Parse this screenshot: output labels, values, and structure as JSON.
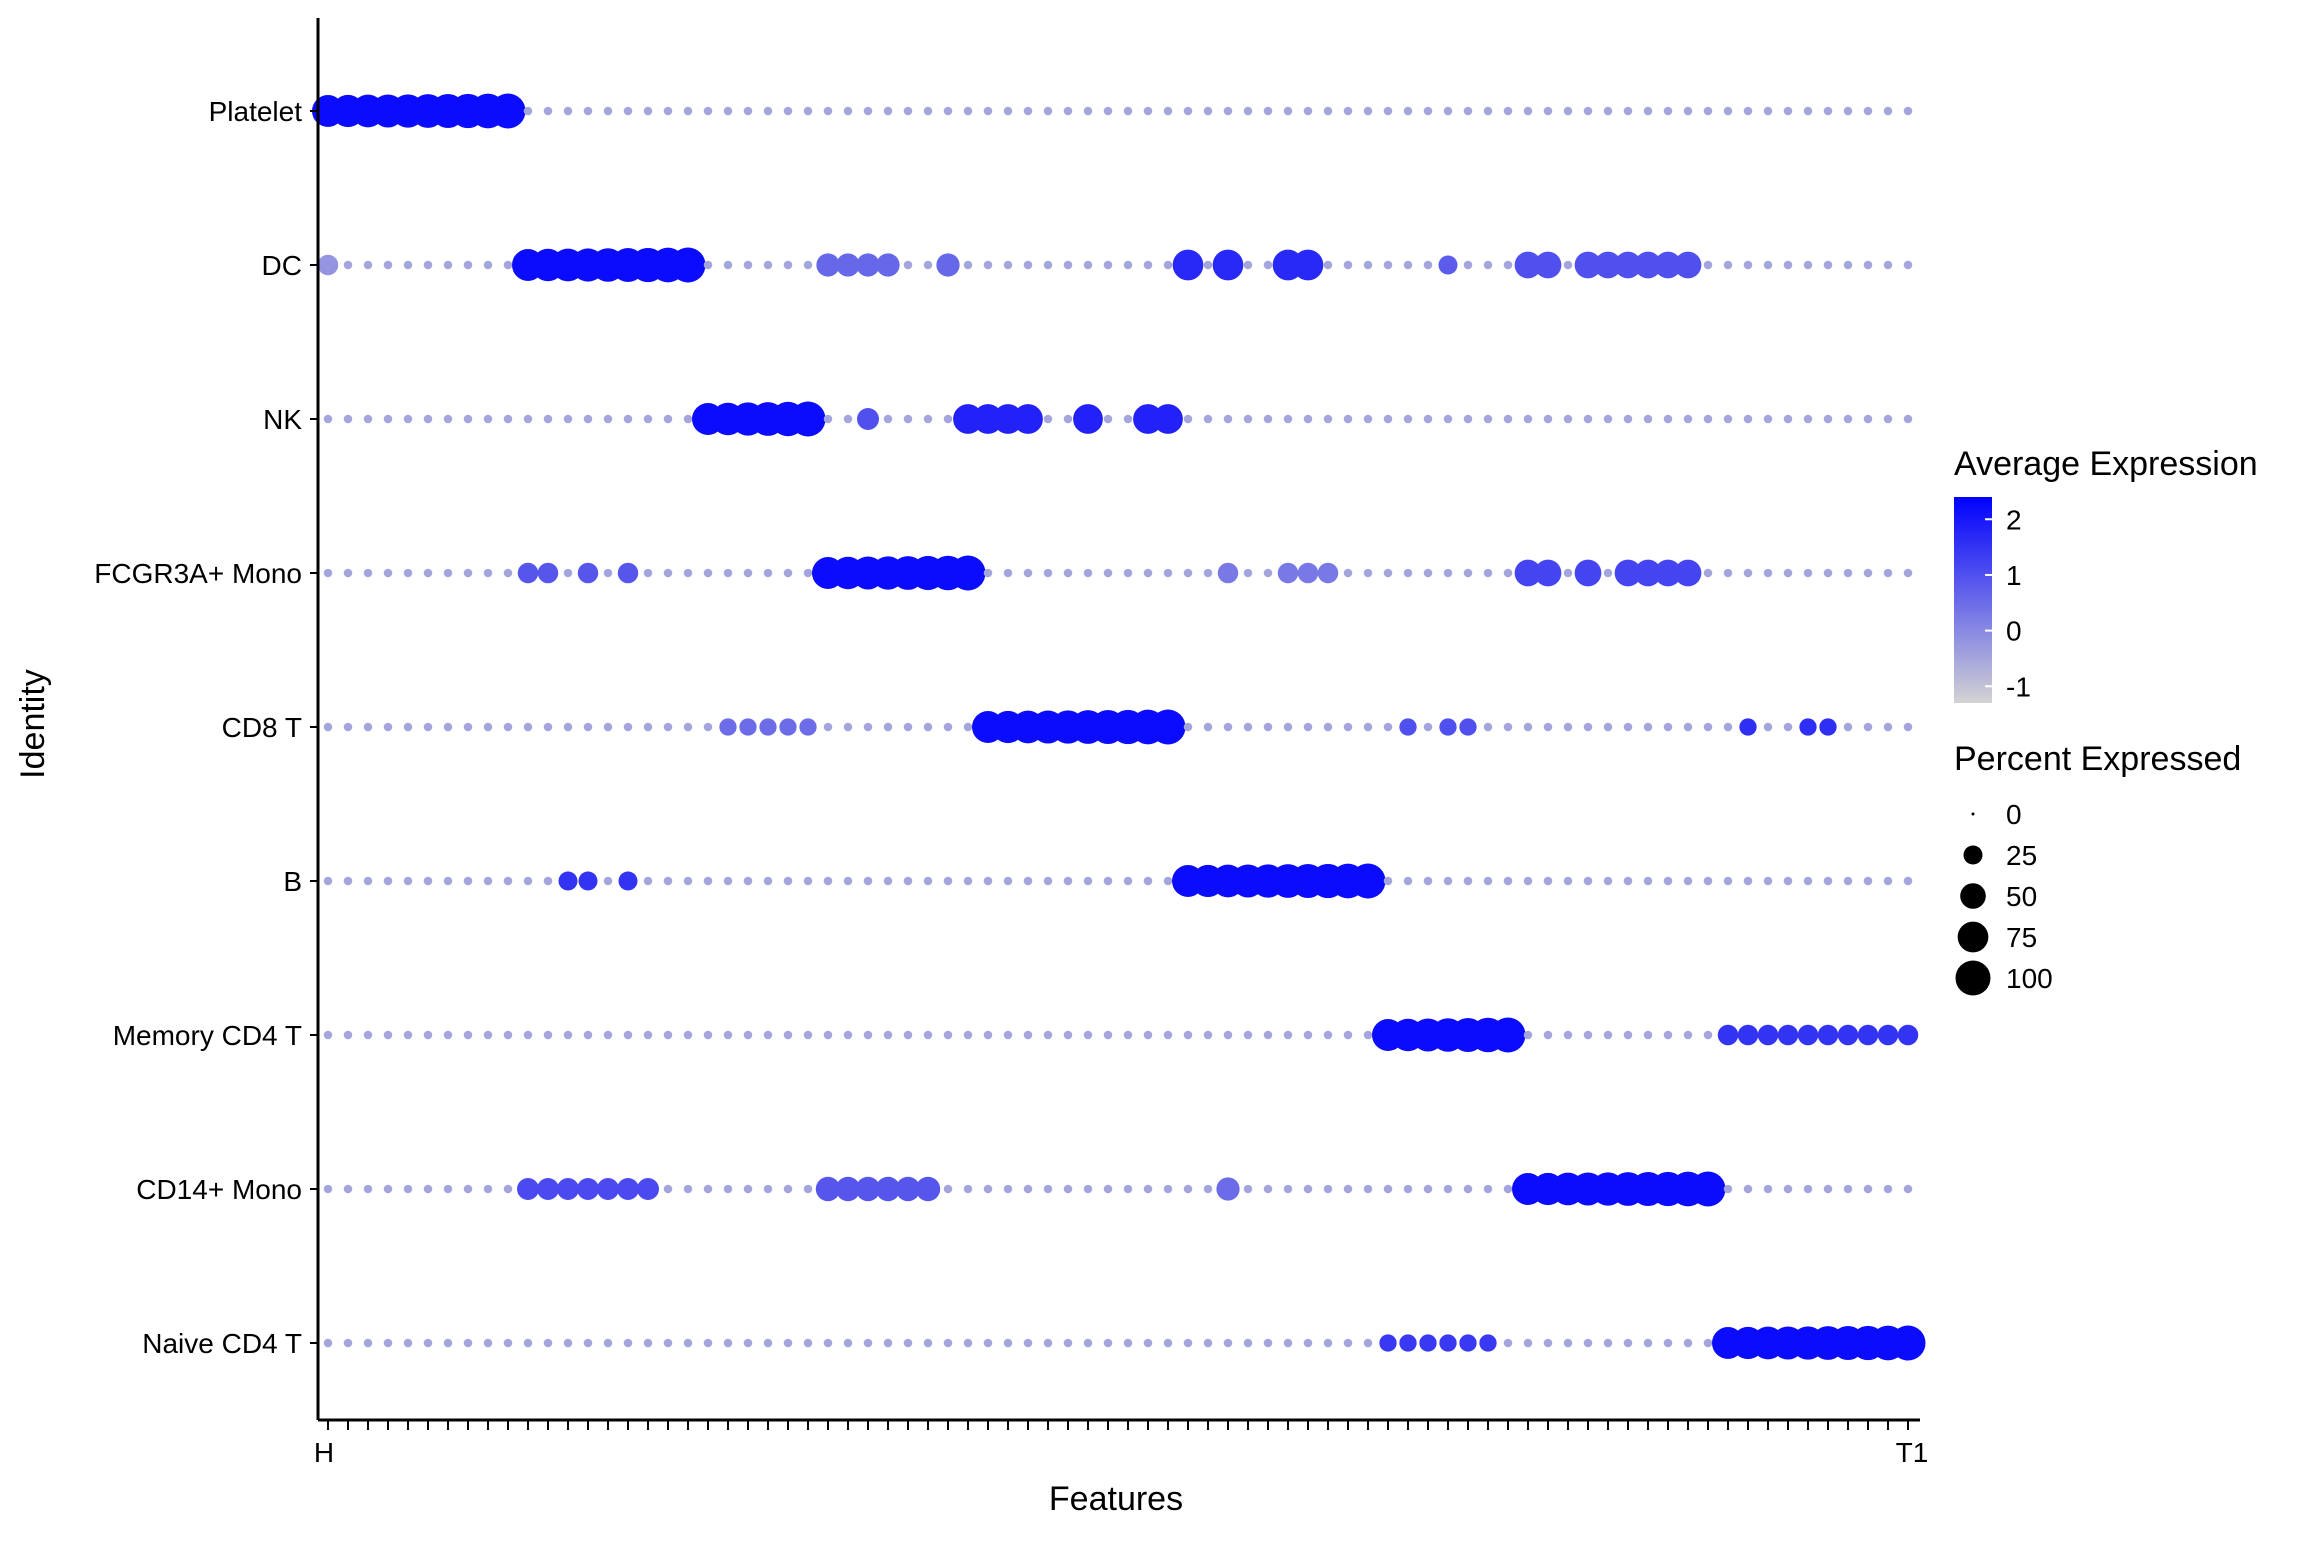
{
  "chart_data": {
    "type": "dotplot",
    "xlabel": "Features",
    "ylabel": "Identity",
    "identities": [
      "Platelet",
      "DC",
      "NK",
      "FCGR3A+ Mono",
      "CD8 T",
      "B",
      "Memory CD4 T",
      "CD14+ Mono",
      "Naive CD4 T"
    ],
    "n_features": 80,
    "feature_labels_visible": [
      "H",
      "T1"
    ],
    "blocks": [
      {
        "identity": "Platelet",
        "start": 0,
        "length": 10
      },
      {
        "identity": "DC",
        "start": 10,
        "length": 9
      },
      {
        "identity": "NK",
        "start": 19,
        "length": 6
      },
      {
        "identity": "FCGR3A+ Mono",
        "start": 25,
        "length": 8
      },
      {
        "identity": "CD8 T",
        "start": 33,
        "length": 10
      },
      {
        "identity": "B",
        "start": 43,
        "length": 10
      },
      {
        "identity": "Memory CD4 T",
        "start": 53,
        "length": 7
      },
      {
        "identity": "CD14+ Mono",
        "start": 60,
        "length": 10
      },
      {
        "identity": "Naive CD4 T",
        "start": 70,
        "length": 10
      }
    ],
    "highlights": [
      {
        "identity": "DC",
        "features": [
          0
        ],
        "pct": 30,
        "expr": -0.2
      },
      {
        "identity": "DC",
        "features": [
          25,
          26,
          27,
          28,
          31
        ],
        "pct": 40,
        "expr": 0.6
      },
      {
        "identity": "DC",
        "features": [
          43,
          45,
          48,
          49
        ],
        "pct": 75,
        "expr": 1.7
      },
      {
        "identity": "DC",
        "features": [
          56
        ],
        "pct": 25,
        "expr": 0.8
      },
      {
        "identity": "DC",
        "features": [
          60,
          61,
          63,
          64,
          65,
          66,
          67,
          68
        ],
        "pct": 55,
        "expr": 1.0
      },
      {
        "identity": "NK",
        "features": [
          27
        ],
        "pct": 35,
        "expr": 1.0
      },
      {
        "identity": "NK",
        "features": [
          32,
          33,
          34,
          35,
          38,
          41,
          42
        ],
        "pct": 70,
        "expr": 1.8
      },
      {
        "identity": "FCGR3A+ Mono",
        "features": [
          10,
          11,
          13,
          15
        ],
        "pct": 30,
        "expr": 0.9
      },
      {
        "identity": "FCGR3A+ Mono",
        "features": [
          45,
          48,
          49,
          50
        ],
        "pct": 30,
        "expr": 0.3
      },
      {
        "identity": "FCGR3A+ Mono",
        "features": [
          60,
          61,
          63,
          65,
          66,
          67,
          68
        ],
        "pct": 55,
        "expr": 1.2
      },
      {
        "identity": "CD8 T",
        "features": [
          20,
          21,
          22,
          23,
          24
        ],
        "pct": 20,
        "expr": 0.5
      },
      {
        "identity": "CD8 T",
        "features": [
          54,
          56,
          57
        ],
        "pct": 20,
        "expr": 1.0
      },
      {
        "identity": "CD8 T",
        "features": [
          71,
          74,
          75
        ],
        "pct": 20,
        "expr": 1.6
      },
      {
        "identity": "B",
        "features": [
          12,
          13,
          15
        ],
        "pct": 25,
        "expr": 1.5
      },
      {
        "identity": "CD14+ Mono",
        "features": [
          10,
          11,
          12,
          13,
          14,
          15,
          16
        ],
        "pct": 35,
        "expr": 1.1
      },
      {
        "identity": "CD14+ Mono",
        "features": [
          25,
          26,
          27,
          28,
          29,
          30
        ],
        "pct": 45,
        "expr": 0.9
      },
      {
        "identity": "CD14+ Mono",
        "features": [
          45
        ],
        "pct": 40,
        "expr": 0.5
      },
      {
        "identity": "Memory CD4 T",
        "features": [
          70,
          71,
          72,
          73,
          74,
          75,
          76,
          77,
          78,
          79
        ],
        "pct": 30,
        "expr": 1.5
      },
      {
        "identity": "Naive CD4 T",
        "features": [
          53,
          54,
          55,
          56,
          57,
          58
        ],
        "pct": 20,
        "expr": 1.4
      }
    ],
    "legend_expression": {
      "title": "Average Expression",
      "ticks": [
        -1,
        0,
        1,
        2
      ],
      "range": [
        -1.3,
        2.4
      ],
      "low_color": "#d3d3d3",
      "high_color": "#0000ff"
    },
    "legend_percent": {
      "title": "Percent Expressed",
      "values": [
        0,
        25,
        50,
        75,
        100
      ]
    }
  }
}
